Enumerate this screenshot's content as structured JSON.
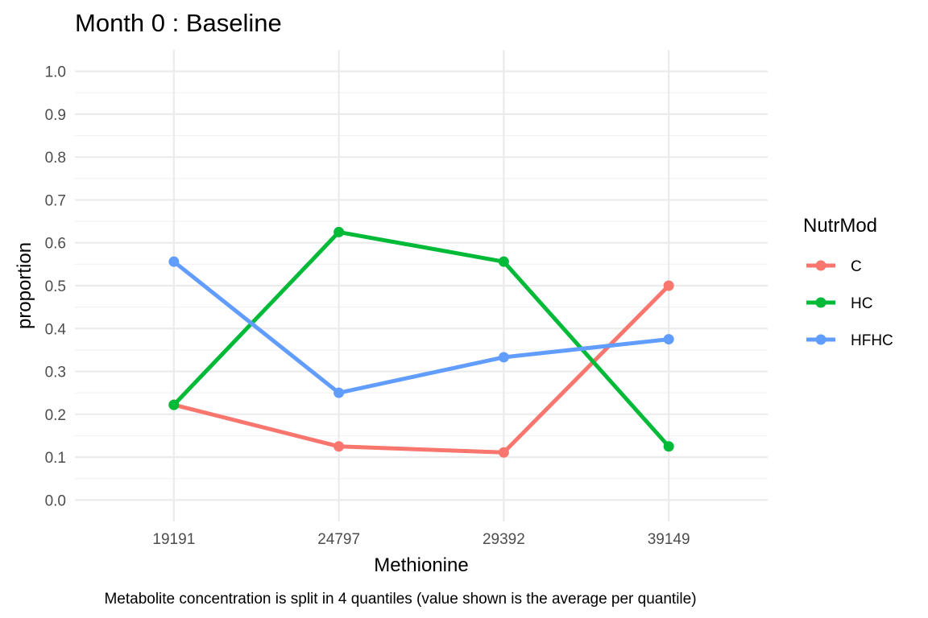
{
  "chart_data": {
    "type": "line",
    "title": "Month 0 : Baseline",
    "xlabel": "Methionine",
    "ylabel": "proportion",
    "caption": "Metabolite concentration is split in 4 quantiles (value shown is the average per quantile)",
    "categories": [
      "19191",
      "24797",
      "29392",
      "39149"
    ],
    "ylim": [
      -0.05,
      1.05
    ],
    "yticks": [
      "0.0",
      "0.1",
      "0.2",
      "0.3",
      "0.4",
      "0.5",
      "0.6",
      "0.7",
      "0.8",
      "0.9",
      "1.0"
    ],
    "grid": true,
    "legend": {
      "title": "NutrMod",
      "placement": "right"
    },
    "series": [
      {
        "name": "C",
        "color": "#F8766D",
        "values": [
          0.222,
          0.125,
          0.111,
          0.5
        ]
      },
      {
        "name": "HC",
        "color": "#00BA38",
        "values": [
          0.222,
          0.625,
          0.556,
          0.125
        ]
      },
      {
        "name": "HFHC",
        "color": "#619CFF",
        "values": [
          0.556,
          0.25,
          0.333,
          0.375
        ]
      }
    ]
  }
}
